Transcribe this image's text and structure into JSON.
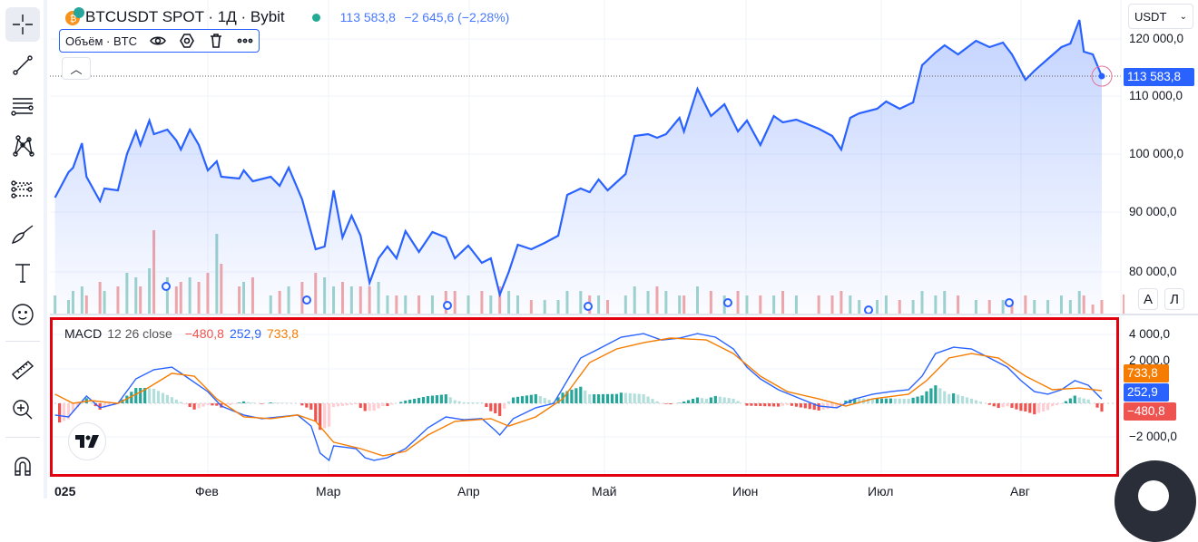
{
  "header": {
    "symbol": "BTCUSDT SPOT · 1Д · Bybit",
    "last": "113 583,8",
    "change": "−2 645,6 (−2,28%)",
    "market_status_color": "#22ab94"
  },
  "volume_legend": {
    "label": "Объём · BTC"
  },
  "currency_select": "USDT",
  "scale_buttons": {
    "auto": "A",
    "log": "Л"
  },
  "price_axis": {
    "ticks": [
      "120 000,0",
      "110 000,0",
      "100 000,0",
      "90 000,0",
      "80 000,0"
    ],
    "last_badge": "113 583,8",
    "badge_color": "#2962ff"
  },
  "macd_axis": {
    "ticks": [
      "4 000,0",
      "2 000,0",
      "−2 000,0"
    ],
    "signal_badge": "733,8",
    "macd_badge": "252,9",
    "hist_badge": "−480,8"
  },
  "macd_legend": {
    "name": "MACD",
    "params": "12 26 close",
    "hist": "−480,8",
    "macd": "252,9",
    "signal": "733,8"
  },
  "time_axis": [
    "025",
    "Фев",
    "Мар",
    "Апр",
    "Май",
    "Июн",
    "Июл",
    "Авг"
  ],
  "colors": {
    "price_line": "#2962ff",
    "macd": "#2962ff",
    "signal": "#f57c00",
    "hist_up": "#26a69a",
    "hist_up_light": "#b2dfdb",
    "hist_down": "#ef5350",
    "hist_down_light": "#ffcdd2",
    "highlight": "#e3000f"
  },
  "chart_data": [
    {
      "type": "area",
      "title": "BTCUSDT SPOT · 1Д · Bybit",
      "ylim": [
        75000,
        125000
      ],
      "y_ticks": [
        80000,
        90000,
        100000,
        110000,
        120000
      ],
      "x_ticks": [
        "2025",
        "Фев",
        "Мар",
        "Апр",
        "Май",
        "Июн",
        "Июл",
        "Авг"
      ],
      "columns": [
        "date",
        "close",
        "volume_relative"
      ],
      "points": [
        [
          "2024-12-29",
          92660,
          0.2
        ],
        [
          "2025-01-01",
          97030,
          0.15
        ],
        [
          "2025-01-02",
          97810,
          0.25
        ],
        [
          "2025-01-04",
          102030,
          0.3
        ],
        [
          "2025-01-05",
          96250,
          0.2
        ],
        [
          "2025-01-08",
          92030,
          0.35
        ],
        [
          "2025-01-09",
          94220,
          0.25
        ],
        [
          "2025-01-12",
          93910,
          0.3
        ],
        [
          "2025-01-14",
          100160,
          0.45
        ],
        [
          "2025-01-16",
          104060,
          0.4
        ],
        [
          "2025-01-17",
          101720,
          0.3
        ],
        [
          "2025-01-19",
          105940,
          0.5
        ],
        [
          "2025-01-20",
          103590,
          0.92
        ],
        [
          "2025-01-23",
          104380,
          0.4
        ],
        [
          "2025-01-25",
          102500,
          0.3
        ],
        [
          "2025-01-26",
          100940,
          0.35
        ],
        [
          "2025-01-28",
          104380,
          0.4
        ],
        [
          "2025-01-30",
          101720,
          0.35
        ],
        [
          "2025-02-01",
          97340,
          0.45
        ],
        [
          "2025-02-03",
          98910,
          0.88
        ],
        [
          "2025-02-04",
          96250,
          0.55
        ],
        [
          "2025-02-08",
          95940,
          0.3
        ],
        [
          "2025-02-09",
          97340,
          0.35
        ],
        [
          "2025-02-11",
          95470,
          0.4
        ],
        [
          "2025-02-15",
          96250,
          0.2
        ],
        [
          "2025-02-17",
          94690,
          0.25
        ],
        [
          "2025-02-19",
          97810,
          0.3
        ],
        [
          "2025-02-22",
          92340,
          0.35
        ],
        [
          "2025-02-25",
          83750,
          0.45
        ],
        [
          "2025-02-27",
          84220,
          0.4
        ],
        [
          "2025-03-01",
          93910,
          0.3
        ],
        [
          "2025-03-03",
          85780,
          0.35
        ],
        [
          "2025-03-05",
          89530,
          0.3
        ],
        [
          "2025-03-07",
          86090,
          0.3
        ],
        [
          "2025-03-09",
          77970,
          0.3
        ],
        [
          "2025-03-11",
          82190,
          0.35
        ],
        [
          "2025-03-13",
          84220,
          0.2
        ],
        [
          "2025-03-15",
          82190,
          0.2
        ],
        [
          "2025-03-17",
          86870,
          0.2
        ],
        [
          "2025-03-20",
          83280,
          0.2
        ],
        [
          "2025-03-23",
          86720,
          0.2
        ],
        [
          "2025-03-26",
          85780,
          0.25
        ],
        [
          "2025-03-28",
          82190,
          0.25
        ],
        [
          "2025-03-31",
          84380,
          0.2
        ],
        [
          "2025-04-03",
          81410,
          0.25
        ],
        [
          "2025-04-05",
          82190,
          0.2
        ],
        [
          "2025-04-07",
          75940,
          0.3
        ],
        [
          "2025-04-09",
          79840,
          0.25
        ],
        [
          "2025-04-11",
          84530,
          0.2
        ],
        [
          "2025-04-14",
          83750,
          0.15
        ],
        [
          "2025-04-17",
          84840,
          0.15
        ],
        [
          "2025-04-20",
          86090,
          0.15
        ],
        [
          "2025-04-22",
          93120,
          0.25
        ],
        [
          "2025-04-25",
          94220,
          0.25
        ],
        [
          "2025-04-27",
          93590,
          0.2
        ],
        [
          "2025-04-29",
          95780,
          0.2
        ],
        [
          "2025-05-01",
          93910,
          0.15
        ],
        [
          "2025-05-05",
          96720,
          0.2
        ],
        [
          "2025-05-07",
          103280,
          0.3
        ],
        [
          "2025-05-10",
          103590,
          0.25
        ],
        [
          "2025-05-12",
          102970,
          0.3
        ],
        [
          "2025-05-14",
          103590,
          0.25
        ],
        [
          "2025-05-17",
          106410,
          0.2
        ],
        [
          "2025-05-18",
          104060,
          0.2
        ],
        [
          "2025-05-21",
          111410,
          0.3
        ],
        [
          "2025-05-24",
          106720,
          0.25
        ],
        [
          "2025-05-27",
          108750,
          0.2
        ],
        [
          "2025-05-30",
          104060,
          0.25
        ],
        [
          "2025-06-01",
          105940,
          0.2
        ],
        [
          "2025-06-04",
          101720,
          0.2
        ],
        [
          "2025-06-07",
          106720,
          0.2
        ],
        [
          "2025-06-09",
          105630,
          0.25
        ],
        [
          "2025-06-12",
          106090,
          0.2
        ],
        [
          "2025-06-17",
          104530,
          0.2
        ],
        [
          "2025-06-20",
          103280,
          0.2
        ],
        [
          "2025-06-22",
          100940,
          0.25
        ],
        [
          "2025-06-24",
          106410,
          0.2
        ],
        [
          "2025-06-26",
          107190,
          0.15
        ],
        [
          "2025-06-30",
          107970,
          0.15
        ],
        [
          "2025-07-02",
          109220,
          0.2
        ],
        [
          "2025-07-05",
          107970,
          0.15
        ],
        [
          "2025-07-08",
          109060,
          0.15
        ],
        [
          "2025-07-10",
          115470,
          0.25
        ],
        [
          "2025-07-13",
          117660,
          0.2
        ],
        [
          "2025-07-15",
          118910,
          0.25
        ],
        [
          "2025-07-18",
          117340,
          0.2
        ],
        [
          "2025-07-22",
          119690,
          0.15
        ],
        [
          "2025-07-25",
          118590,
          0.15
        ],
        [
          "2025-07-28",
          119380,
          0.15
        ],
        [
          "2025-07-30",
          117340,
          0.15
        ],
        [
          "2025-08-02",
          112970,
          0.2
        ],
        [
          "2025-08-04",
          114530,
          0.15
        ],
        [
          "2025-08-07",
          116560,
          0.15
        ],
        [
          "2025-08-10",
          118590,
          0.2
        ],
        [
          "2025-08-12",
          119220,
          0.15
        ],
        [
          "2025-08-14",
          123280,
          0.25
        ],
        [
          "2025-08-15",
          117810,
          0.2
        ],
        [
          "2025-08-17",
          117340,
          0.1
        ],
        [
          "2025-08-19",
          113584,
          0.15
        ]
      ]
    },
    {
      "type": "line",
      "title": "MACD 12 26 close",
      "ylim": [
        -3500,
        4500
      ],
      "y_ticks": [
        -2000,
        2000,
        4000
      ],
      "series": [
        {
          "name": "MACD",
          "color": "#2962ff",
          "points": [
            [
              "2024-12-29",
              -680
            ],
            [
              "2025-01-01",
              -790
            ],
            [
              "2025-01-05",
              420
            ],
            [
              "2025-01-08",
              -260
            ],
            [
              "2025-01-12",
              0
            ],
            [
              "2025-01-16",
              1420
            ],
            [
              "2025-01-20",
              1950
            ],
            [
              "2025-01-24",
              2100
            ],
            [
              "2025-01-27",
              1580
            ],
            [
              "2025-02-01",
              680
            ],
            [
              "2025-02-04",
              -160
            ],
            [
              "2025-02-09",
              -680
            ],
            [
              "2025-02-13",
              -890
            ],
            [
              "2025-02-17",
              -790
            ],
            [
              "2025-02-21",
              -680
            ],
            [
              "2025-02-24",
              -1320
            ],
            [
              "2025-02-26",
              -2890
            ],
            [
              "2025-02-28",
              -3310
            ],
            [
              "2025-03-01",
              -2470
            ],
            [
              "2025-03-06",
              -2630
            ],
            [
              "2025-03-08",
              -3160
            ],
            [
              "2025-03-10",
              -3310
            ],
            [
              "2025-03-13",
              -3160
            ],
            [
              "2025-03-17",
              -2630
            ],
            [
              "2025-03-22",
              -1420
            ],
            [
              "2025-03-26",
              -790
            ],
            [
              "2025-03-30",
              -950
            ],
            [
              "2025-04-03",
              -890
            ],
            [
              "2025-04-06",
              -1580
            ],
            [
              "2025-04-07",
              -1840
            ],
            [
              "2025-04-10",
              -890
            ],
            [
              "2025-04-15",
              -260
            ],
            [
              "2025-04-19",
              0
            ],
            [
              "2025-04-22",
              1320
            ],
            [
              "2025-04-25",
              2630
            ],
            [
              "2025-04-29",
              3160
            ],
            [
              "2025-05-04",
              3840
            ],
            [
              "2025-05-09",
              4050
            ],
            [
              "2025-05-13",
              3680
            ],
            [
              "2025-05-17",
              3790
            ],
            [
              "2025-05-21",
              4050
            ],
            [
              "2025-05-25",
              3840
            ],
            [
              "2025-05-29",
              3160
            ],
            [
              "2025-06-01",
              2100
            ],
            [
              "2025-06-04",
              1420
            ],
            [
              "2025-06-08",
              790
            ],
            [
              "2025-06-13",
              260
            ],
            [
              "2025-06-17",
              -160
            ],
            [
              "2025-06-21",
              -260
            ],
            [
              "2025-06-25",
              260
            ],
            [
              "2025-06-29",
              530
            ],
            [
              "2025-07-03",
              680
            ],
            [
              "2025-07-07",
              790
            ],
            [
              "2025-07-10",
              1580
            ],
            [
              "2025-07-13",
              2890
            ],
            [
              "2025-07-17",
              3260
            ],
            [
              "2025-07-21",
              3160
            ],
            [
              "2025-07-25",
              2630
            ],
            [
              "2025-07-29",
              2100
            ],
            [
              "2025-08-01",
              1320
            ],
            [
              "2025-08-04",
              680
            ],
            [
              "2025-08-07",
              530
            ],
            [
              "2025-08-10",
              790
            ],
            [
              "2025-08-13",
              1320
            ],
            [
              "2025-08-16",
              1050
            ],
            [
              "2025-08-19",
              252.9
            ]
          ]
        },
        {
          "name": "Signal",
          "color": "#f57c00",
          "points": [
            [
              "2024-12-29",
              530
            ],
            [
              "2025-01-02",
              0
            ],
            [
              "2025-01-06",
              160
            ],
            [
              "2025-01-12",
              0
            ],
            [
              "2025-01-18",
              790
            ],
            [
              "2025-01-24",
              1740
            ],
            [
              "2025-01-29",
              1580
            ],
            [
              "2025-02-03",
              260
            ],
            [
              "2025-02-09",
              -790
            ],
            [
              "2025-02-15",
              -890
            ],
            [
              "2025-02-21",
              -680
            ],
            [
              "2025-02-25",
              -1050
            ],
            [
              "2025-03-01",
              -2260
            ],
            [
              "2025-03-07",
              -2630
            ],
            [
              "2025-03-12",
              -3050
            ],
            [
              "2025-03-17",
              -2790
            ],
            [
              "2025-03-22",
              -1840
            ],
            [
              "2025-03-28",
              -1050
            ],
            [
              "2025-04-05",
              -890
            ],
            [
              "2025-04-09",
              -1320
            ],
            [
              "2025-04-15",
              -790
            ],
            [
              "2025-04-21",
              260
            ],
            [
              "2025-04-27",
              2370
            ],
            [
              "2025-05-03",
              3160
            ],
            [
              "2025-05-09",
              3520
            ],
            [
              "2025-05-15",
              3790
            ],
            [
              "2025-05-23",
              3680
            ],
            [
              "2025-05-29",
              2890
            ],
            [
              "2025-06-04",
              1580
            ],
            [
              "2025-06-10",
              680
            ],
            [
              "2025-06-17",
              260
            ],
            [
              "2025-06-23",
              -160
            ],
            [
              "2025-06-29",
              260
            ],
            [
              "2025-07-07",
              530
            ],
            [
              "2025-07-11",
              1320
            ],
            [
              "2025-07-16",
              2630
            ],
            [
              "2025-07-21",
              2890
            ],
            [
              "2025-07-27",
              2630
            ],
            [
              "2025-08-02",
              1580
            ],
            [
              "2025-08-08",
              790
            ],
            [
              "2025-08-14",
              890
            ],
            [
              "2025-08-19",
              733.8
            ]
          ]
        }
      ],
      "histogram_last": -480.8
    }
  ]
}
